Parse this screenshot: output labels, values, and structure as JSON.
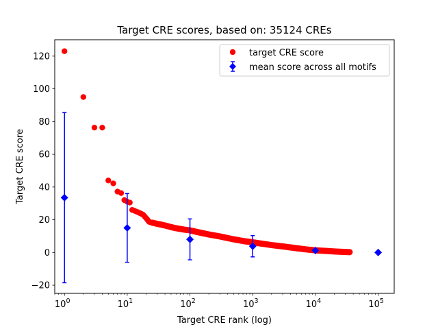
{
  "chart_data": {
    "type": "scatter",
    "title": "Target CRE scores, based on: 35124 CREs",
    "xlabel": "Target CRE rank (log)",
    "ylabel": "Target CRE score",
    "xscale": "log",
    "xlim": [
      0.7,
      180000
    ],
    "ylim": [
      -25,
      130
    ],
    "xticks": [
      {
        "value": 1,
        "base": "10",
        "exp": "0"
      },
      {
        "value": 10,
        "base": "10",
        "exp": "1"
      },
      {
        "value": 100,
        "base": "10",
        "exp": "2"
      },
      {
        "value": 1000,
        "base": "10",
        "exp": "3"
      },
      {
        "value": 10000,
        "base": "10",
        "exp": "4"
      },
      {
        "value": 100000,
        "base": "10",
        "exp": "5"
      }
    ],
    "yticks": [
      -20,
      0,
      20,
      40,
      60,
      80,
      100,
      120
    ],
    "yticklabels": [
      "−20",
      "0",
      "20",
      "40",
      "60",
      "80",
      "100",
      "120"
    ],
    "legend_position": "top-right",
    "series": [
      {
        "name": "target CRE score",
        "marker": "circle",
        "color": "#ff0000",
        "discrete_points": [
          [
            1,
            123
          ],
          [
            2,
            95
          ],
          [
            3,
            76.3
          ],
          [
            4,
            76.3
          ],
          [
            5,
            44
          ],
          [
            6,
            42.2
          ],
          [
            7,
            37.2
          ],
          [
            8,
            36.3
          ],
          [
            9,
            32
          ],
          [
            10,
            31
          ],
          [
            11,
            30.5
          ],
          [
            12,
            26
          ],
          [
            13,
            25.5
          ],
          [
            14,
            25
          ],
          [
            15,
            24.5
          ],
          [
            16,
            24
          ],
          [
            17,
            23.5
          ],
          [
            18,
            23
          ],
          [
            19,
            22
          ],
          [
            20,
            21
          ],
          [
            21,
            20
          ],
          [
            22,
            19
          ],
          [
            23,
            18.5
          ],
          [
            25,
            18.2
          ]
        ],
        "curve": [
          [
            25,
            18.2
          ],
          [
            30,
            17.5
          ],
          [
            40,
            16.5
          ],
          [
            50,
            15.5
          ],
          [
            60,
            14.8
          ],
          [
            80,
            14
          ],
          [
            100,
            13.5
          ],
          [
            150,
            12
          ],
          [
            200,
            11
          ],
          [
            300,
            9.8
          ],
          [
            500,
            8
          ],
          [
            700,
            7
          ],
          [
            1000,
            6.2
          ],
          [
            2000,
            4.5
          ],
          [
            3000,
            3.7
          ],
          [
            5000,
            2.6
          ],
          [
            7000,
            1.9
          ],
          [
            10000,
            1.3
          ],
          [
            15000,
            0.9
          ],
          [
            20000,
            0.6
          ],
          [
            30000,
            0.3
          ],
          [
            35124,
            0.2
          ]
        ]
      },
      {
        "name": "mean score across all motifs",
        "marker": "diamond",
        "color": "#0000ff",
        "points": [
          {
            "x": 1,
            "y": 33.5,
            "err": 52
          },
          {
            "x": 10,
            "y": 15,
            "err": 21
          },
          {
            "x": 100,
            "y": 8,
            "err": 12.5
          },
          {
            "x": 1000,
            "y": 3.8,
            "err": 6.5
          },
          {
            "x": 10000,
            "y": 1.2,
            "err": 0
          },
          {
            "x": 100000,
            "y": 0,
            "err": 0
          }
        ]
      }
    ]
  }
}
